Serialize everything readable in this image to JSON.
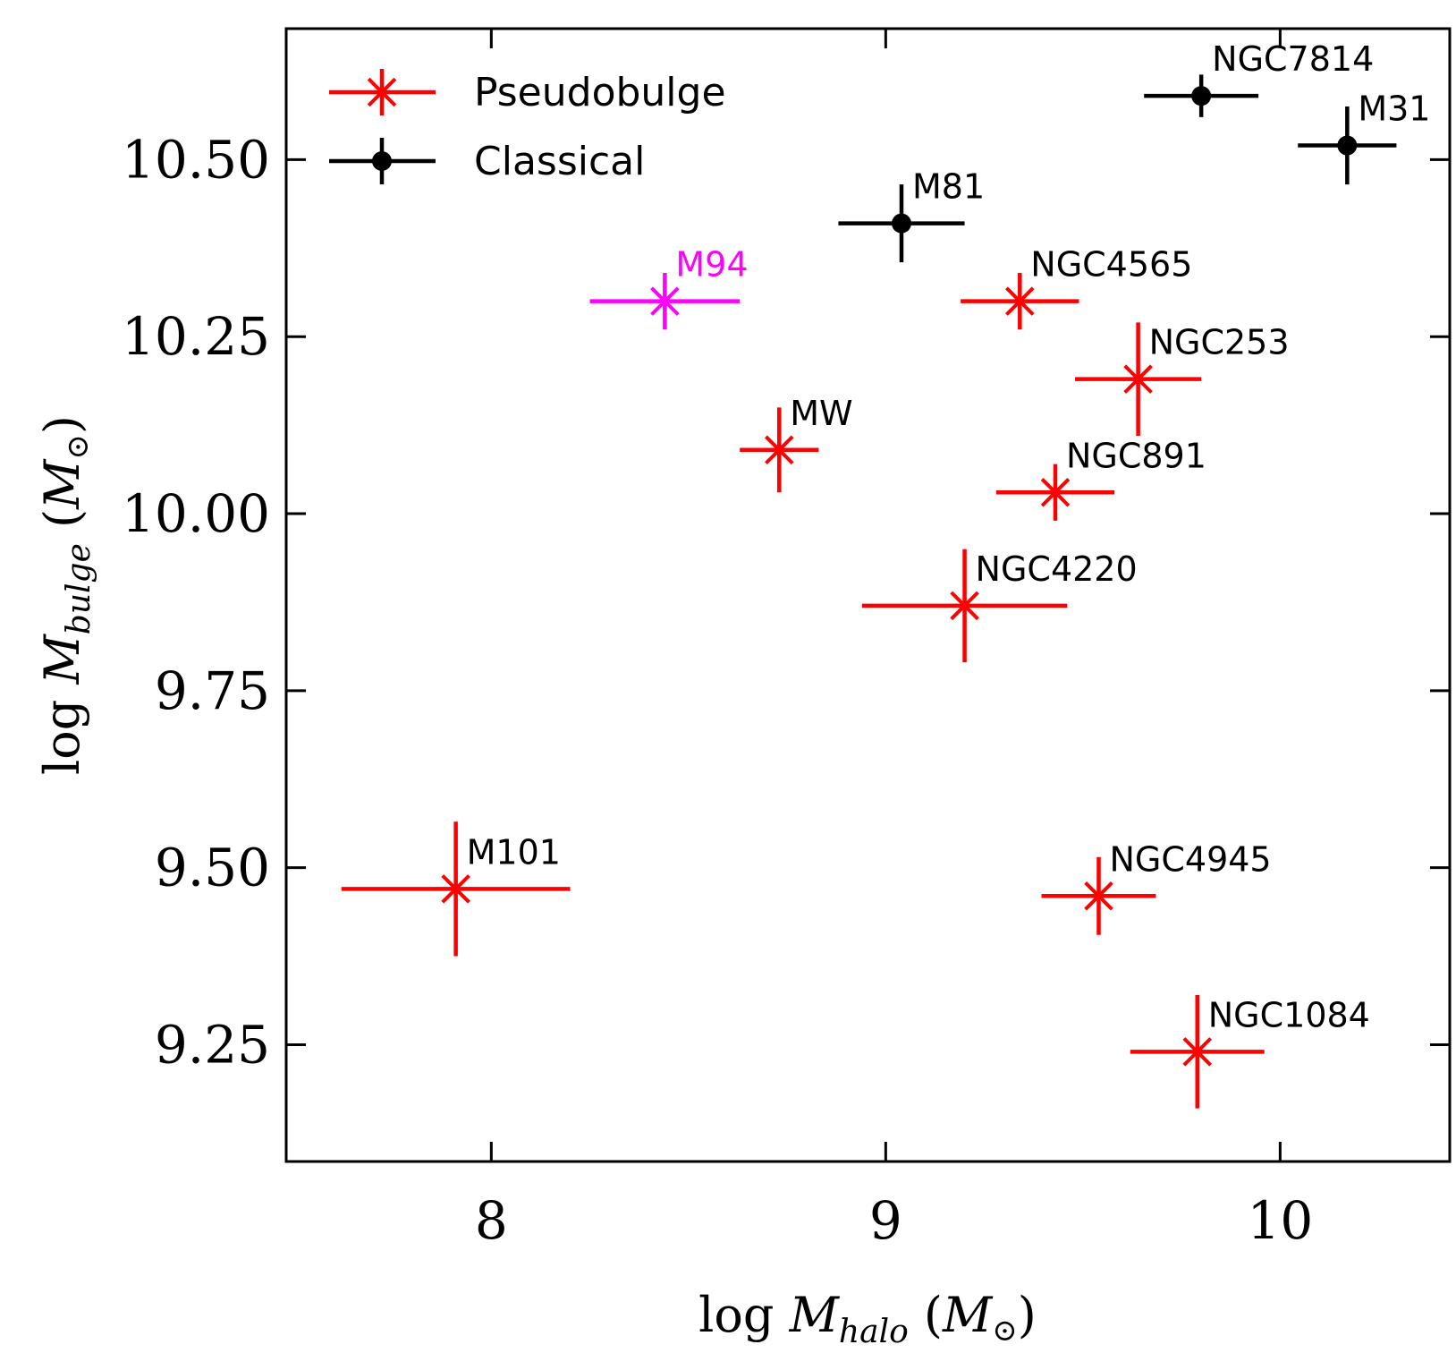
{
  "chart_data": {
    "type": "scatter",
    "title": "",
    "xlabel": {
      "prefix": "log ",
      "main": "M",
      "sub": "halo",
      "unit_open": " (",
      "unit_main": "M",
      "unit_sub": "⊙",
      "unit_close": ")"
    },
    "ylabel": {
      "prefix": "log ",
      "main": "M",
      "sub": "bulge",
      "unit_open": " (",
      "unit_main": "M",
      "unit_sub": "⊙",
      "unit_close": ")"
    },
    "xlim": [
      7.48,
      10.43
    ],
    "ylim": [
      9.085,
      10.685
    ],
    "x_ticks": [
      8,
      9,
      10
    ],
    "x_tick_labels": [
      "8",
      "9",
      "10"
    ],
    "y_ticks": [
      9.25,
      9.5,
      9.75,
      10.0,
      10.25,
      10.5
    ],
    "y_tick_labels": [
      "9.25",
      "9.50",
      "9.75",
      "10.00",
      "10.25",
      "10.50"
    ],
    "grid": false,
    "legend_placement": "top-left",
    "colors": {
      "pseudobulge": "#ff0000",
      "classical": "#000000",
      "highlight": "#ff00ff"
    },
    "legend": [
      {
        "label": "Pseudobulge",
        "marker": "star",
        "color": "#ff0000"
      },
      {
        "label": "Classical",
        "marker": "circle",
        "color": "#000000"
      }
    ],
    "series": [
      {
        "name": "Pseudobulge",
        "marker": "star",
        "color": "#ff0000",
        "points": [
          {
            "label": "M94",
            "x": 8.44,
            "y": 10.3,
            "xerr": 0.19,
            "yerr": 0.04,
            "color": "#ff00ff"
          },
          {
            "label": "NGC4565",
            "x": 9.34,
            "y": 10.3,
            "xerr": 0.15,
            "yerr": 0.04
          },
          {
            "label": "NGC253",
            "x": 9.64,
            "y": 10.19,
            "xerr": 0.16,
            "yerr": 0.08
          },
          {
            "label": "MW",
            "x": 8.73,
            "y": 10.09,
            "xerr": 0.1,
            "yerr": 0.06
          },
          {
            "label": "NGC891",
            "x": 9.43,
            "y": 10.03,
            "xerr": 0.15,
            "yerr": 0.04
          },
          {
            "label": "NGC4220",
            "x": 9.2,
            "y": 9.87,
            "xerr": 0.26,
            "yerr": 0.08
          },
          {
            "label": "M101",
            "x": 7.91,
            "y": 9.47,
            "xerr": 0.29,
            "yerr": 0.095
          },
          {
            "label": "NGC4945",
            "x": 9.54,
            "y": 9.46,
            "xerr": 0.145,
            "yerr": 0.055
          },
          {
            "label": "NGC1084",
            "x": 9.79,
            "y": 9.24,
            "xerr": 0.17,
            "yerr": 0.08
          }
        ]
      },
      {
        "name": "Classical",
        "marker": "circle",
        "color": "#000000",
        "points": [
          {
            "label": "NGC7814",
            "x": 9.8,
            "y": 10.59,
            "xerr": 0.145,
            "yerr": 0.03
          },
          {
            "label": "M31",
            "x": 10.17,
            "y": 10.52,
            "xerr": 0.125,
            "yerr": 0.055
          },
          {
            "label": "M81",
            "x": 9.04,
            "y": 10.41,
            "xerr": 0.16,
            "yerr": 0.055
          }
        ]
      }
    ]
  }
}
